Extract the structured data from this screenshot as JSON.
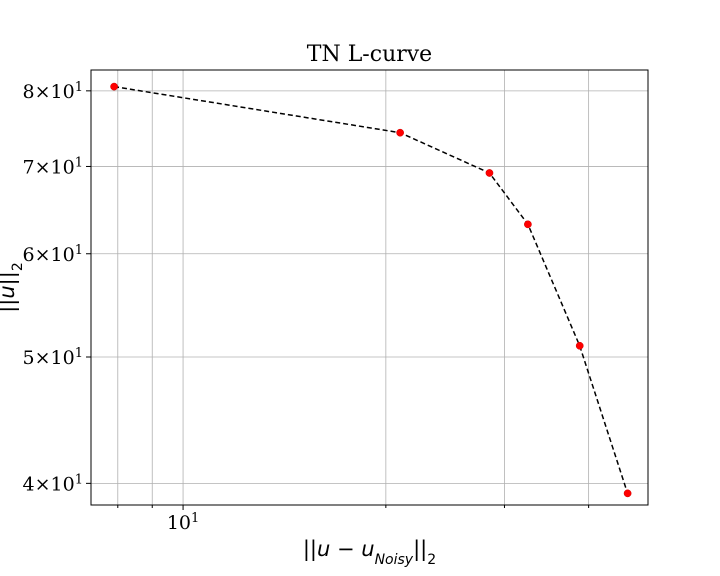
{
  "chart_data": {
    "type": "line",
    "title": "TN L-curve",
    "xlabel": "||u - u_Noisy||_2",
    "ylabel": "||u||_2",
    "xscale": "log",
    "yscale": "log",
    "xlim": [
      7.3,
      49.0
    ],
    "ylim": [
      38.5,
      83.0
    ],
    "grid": true,
    "x_ticks": [
      {
        "value": 10,
        "label": "10^1"
      }
    ],
    "y_ticks": [
      {
        "value": 40,
        "label": "4×10^1"
      },
      {
        "value": 50,
        "label": "5×10^1"
      },
      {
        "value": 60,
        "label": "6×10^1"
      },
      {
        "value": 70,
        "label": "7×10^1"
      },
      {
        "value": 80,
        "label": "8×10^1"
      }
    ],
    "series": [
      {
        "marker_color": "#ff0000",
        "line_color": "#000000",
        "line_style": "dashed",
        "x": [
          7.9,
          21.0,
          28.5,
          32.5,
          38.8,
          45.7
        ],
        "y": [
          80.6,
          74.3,
          69.2,
          63.2,
          51.0,
          39.3
        ]
      }
    ]
  }
}
